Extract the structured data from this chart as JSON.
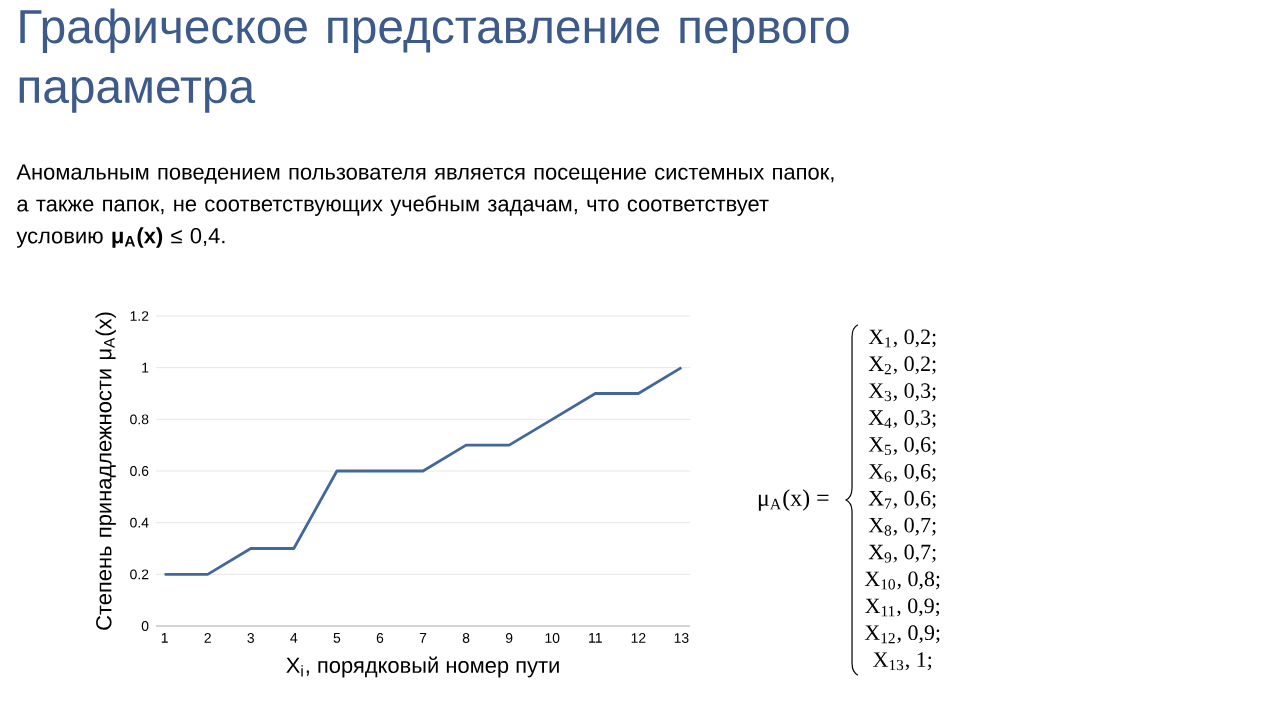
{
  "chart_data": {
    "type": "line",
    "title": "Графическое представление первого параметра",
    "subtitle": "Аномальным поведением пользователя является посещение системных папок, а также папок, не соответствующих учебным задачам, что соответствует условию **μ$_{A}$(x)** ≤ 0,4.",
    "xlabel": "X$_{i}$, порядковый номер пути",
    "ylabel": "Степень принадлежности μ$_{A}$(x)",
    "categories": [
      "1",
      "2",
      "3",
      "4",
      "5",
      "6",
      "7",
      "8",
      "9",
      "10",
      "11",
      "12",
      "13"
    ],
    "series": [
      {
        "color": "#44679b",
        "values": [
          0.2,
          0.2,
          0.3,
          0.3,
          0.6,
          0.6,
          0.6,
          0.7,
          0.7,
          0.8,
          0.9,
          0.9,
          1
        ]
      }
    ],
    "ylim": [
      0,
      1.2
    ],
    "yticks": [
      0,
      0.2,
      0.4,
      0.6,
      0.8,
      1,
      1.2
    ],
    "grid": "y",
    "marker": "none",
    "line_style": "solid",
    "annotations": [
      "μ$_{A}$(x) =",
      "X$_{1}$, 0,2;",
      "X$_{2}$, 0,2;",
      "X$_{3}$, 0,3;",
      "X$_{4}$, 0,3;",
      "X$_{5}$, 0,6;",
      "X$_{6}$, 0,6;",
      "X$_{7}$, 0,6;",
      "X$_{8}$, 0,7;",
      "X$_{9}$, 0,7;",
      "X$_{10}$, 0,8;",
      "X$_{11}$, 0,9;",
      "X$_{12}$, 0,9;",
      "X$_{13}$, 1;"
    ]
  }
}
